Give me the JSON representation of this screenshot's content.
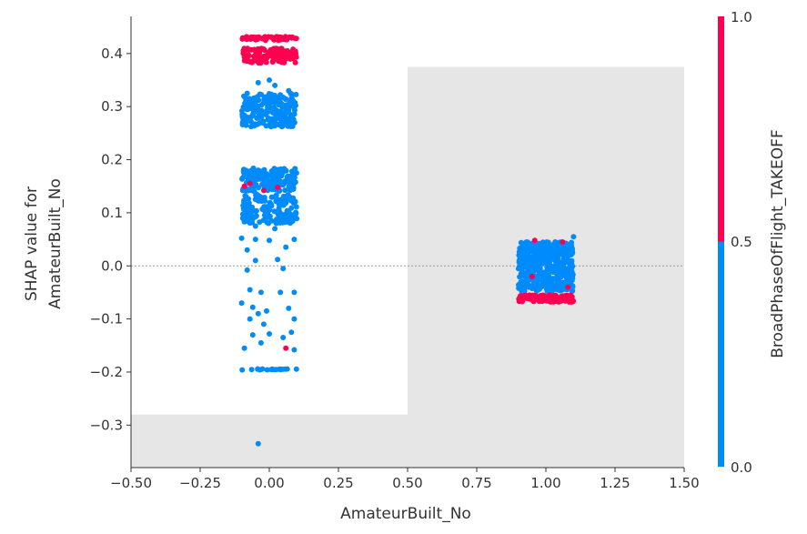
{
  "chart_data": {
    "type": "scatter",
    "title": "",
    "xlabel": "AmateurBuilt_No",
    "ylabel_line1": "SHAP value for",
    "ylabel_line2": "AmateurBuilt_No",
    "xlim": [
      -0.5,
      1.5
    ],
    "ylim": [
      -0.38,
      0.47
    ],
    "xticks": [
      -0.5,
      -0.25,
      0.0,
      0.25,
      0.5,
      0.75,
      1.0,
      1.25,
      1.5
    ],
    "xtick_labels": [
      "−0.50",
      "−0.25",
      "0.00",
      "0.25",
      "0.50",
      "0.75",
      "1.00",
      "1.25",
      "1.50"
    ],
    "yticks": [
      -0.3,
      -0.2,
      -0.1,
      0.0,
      0.1,
      0.2,
      0.3,
      0.4
    ],
    "ytick_labels": [
      "−0.3",
      "−0.2",
      "−0.1",
      "0.0",
      "0.1",
      "0.2",
      "0.3",
      "0.4"
    ],
    "zero_line": 0.0,
    "histogram_background": [
      {
        "x0": -0.5,
        "x1": 0.5,
        "top": -0.28
      },
      {
        "x0": 0.5,
        "x1": 1.5,
        "top": 0.375
      }
    ],
    "colorbar": {
      "label": "BroadPhaseOfFlight_TAKEOFF",
      "tick_labels": [
        "0.0",
        "0.5",
        "1.0"
      ],
      "low_color": "#008bfb",
      "high_color": "#ff0051"
    },
    "clusters": [
      {
        "x_center": 0.0,
        "jitter": 0.11,
        "y": [
          0.425,
          0.432
        ],
        "count": 60,
        "color_value": 1
      },
      {
        "x_center": 0.0,
        "jitter": 0.11,
        "y": [
          0.382,
          0.41
        ],
        "count": 120,
        "color_value": 1
      },
      {
        "x_center": 0.0,
        "jitter": 0.11,
        "y": [
          0.262,
          0.325
        ],
        "count": 220,
        "color_value": 0
      },
      {
        "x_center": 0.0,
        "jitter": 0.11,
        "y": [
          0.14,
          0.185
        ],
        "count": 160,
        "color_value": 0
      },
      {
        "x_center": 0.0,
        "jitter": 0.11,
        "y": [
          0.08,
          0.135
        ],
        "count": 160,
        "color_value": 0
      },
      {
        "x_center": 0.0,
        "jitter": 0.11,
        "y": [
          -0.196,
          -0.194
        ],
        "count": 20,
        "color_value": 0
      },
      {
        "x_center": 1.0,
        "jitter": 0.11,
        "y": [
          -0.048,
          0.045
        ],
        "count": 520,
        "color_value": 0
      },
      {
        "x_center": 1.0,
        "jitter": 0.11,
        "y": [
          -0.068,
          -0.055
        ],
        "count": 180,
        "color_value": 1
      }
    ],
    "points": [
      {
        "x": -0.04,
        "y": 0.345,
        "c": 0
      },
      {
        "x": 0.0,
        "y": 0.35,
        "c": 0
      },
      {
        "x": 0.02,
        "y": 0.34,
        "c": 0
      },
      {
        "x": -0.08,
        "y": 0.325,
        "c": 0
      },
      {
        "x": 0.07,
        "y": 0.33,
        "c": 0
      },
      {
        "x": -0.09,
        "y": 0.15,
        "c": 1
      },
      {
        "x": -0.07,
        "y": 0.155,
        "c": 1
      },
      {
        "x": -0.02,
        "y": 0.142,
        "c": 1
      },
      {
        "x": 0.03,
        "y": 0.148,
        "c": 1
      },
      {
        "x": -0.05,
        "y": 0.075,
        "c": 0
      },
      {
        "x": 0.02,
        "y": 0.07,
        "c": 0
      },
      {
        "x": -0.1,
        "y": 0.052,
        "c": 0
      },
      {
        "x": -0.05,
        "y": 0.05,
        "c": 0
      },
      {
        "x": 0.0,
        "y": 0.048,
        "c": 0
      },
      {
        "x": 0.09,
        "y": 0.05,
        "c": 0
      },
      {
        "x": -0.08,
        "y": 0.03,
        "c": 0
      },
      {
        "x": 0.06,
        "y": 0.035,
        "c": 0
      },
      {
        "x": -0.05,
        "y": 0.01,
        "c": 0
      },
      {
        "x": 0.03,
        "y": 0.012,
        "c": 0
      },
      {
        "x": -0.08,
        "y": -0.008,
        "c": 0
      },
      {
        "x": 0.05,
        "y": -0.005,
        "c": 0
      },
      {
        "x": -0.07,
        "y": -0.045,
        "c": 0
      },
      {
        "x": -0.03,
        "y": -0.05,
        "c": 0
      },
      {
        "x": 0.04,
        "y": -0.05,
        "c": 0
      },
      {
        "x": 0.09,
        "y": -0.05,
        "c": 0
      },
      {
        "x": -0.1,
        "y": -0.07,
        "c": 0
      },
      {
        "x": -0.06,
        "y": -0.078,
        "c": 0
      },
      {
        "x": -0.04,
        "y": -0.09,
        "c": 0
      },
      {
        "x": -0.01,
        "y": -0.085,
        "c": 0
      },
      {
        "x": 0.07,
        "y": -0.08,
        "c": 0
      },
      {
        "x": -0.07,
        "y": -0.1,
        "c": 0
      },
      {
        "x": -0.02,
        "y": -0.11,
        "c": 0
      },
      {
        "x": 0.09,
        "y": -0.1,
        "c": 0
      },
      {
        "x": -0.06,
        "y": -0.13,
        "c": 0
      },
      {
        "x": 0.0,
        "y": -0.128,
        "c": 0
      },
      {
        "x": 0.05,
        "y": -0.135,
        "c": 0
      },
      {
        "x": 0.08,
        "y": -0.125,
        "c": 0
      },
      {
        "x": -0.09,
        "y": -0.155,
        "c": 0
      },
      {
        "x": -0.03,
        "y": -0.145,
        "c": 0
      },
      {
        "x": 0.06,
        "y": -0.155,
        "c": 1
      },
      {
        "x": 0.09,
        "y": -0.158,
        "c": 0
      },
      {
        "x": -0.04,
        "y": -0.335,
        "c": 0
      },
      {
        "x": 0.96,
        "y": 0.048,
        "c": 1
      },
      {
        "x": 1.06,
        "y": 0.045,
        "c": 1
      },
      {
        "x": 1.1,
        "y": 0.055,
        "c": 0
      },
      {
        "x": 0.93,
        "y": 0.045,
        "c": 0
      },
      {
        "x": 1.08,
        "y": -0.04,
        "c": 1
      },
      {
        "x": 0.95,
        "y": -0.02,
        "c": 1
      }
    ]
  }
}
